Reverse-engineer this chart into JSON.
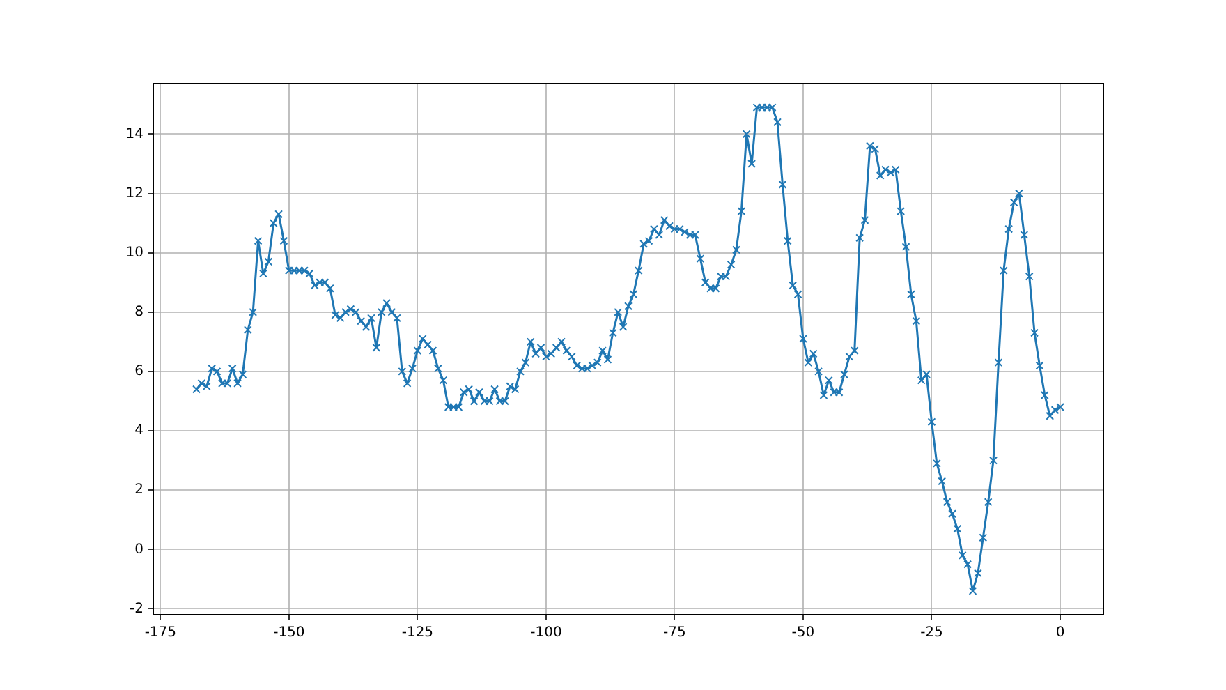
{
  "chart_data": {
    "type": "line",
    "marker": "cross",
    "line_style": "solid",
    "grid": true,
    "legend": false,
    "xlim": [
      -176.4,
      8.4
    ],
    "ylim": [
      -2.2,
      15.7
    ],
    "xticks": [
      -175,
      -150,
      -125,
      -100,
      -75,
      -50,
      -25,
      0
    ],
    "yticks": [
      -2,
      0,
      2,
      4,
      6,
      8,
      10,
      12,
      14
    ],
    "x": [
      -168,
      -167,
      -166,
      -165,
      -164,
      -163,
      -162,
      -161,
      -160,
      -159,
      -158,
      -157,
      -156,
      -155,
      -154,
      -153,
      -152,
      -151,
      -150,
      -149,
      -148,
      -147,
      -146,
      -145,
      -144,
      -143,
      -142,
      -141,
      -140,
      -139,
      -138,
      -137,
      -136,
      -135,
      -134,
      -133,
      -132,
      -131,
      -130,
      -129,
      -128,
      -127,
      -126,
      -125,
      -124,
      -123,
      -122,
      -121,
      -120,
      -119,
      -118,
      -117,
      -116,
      -115,
      -114,
      -113,
      -112,
      -111,
      -110,
      -109,
      -108,
      -107,
      -106,
      -105,
      -104,
      -103,
      -102,
      -101,
      -100,
      -99,
      -98,
      -97,
      -96,
      -95,
      -94,
      -93,
      -92,
      -91,
      -90,
      -89,
      -88,
      -87,
      -86,
      -85,
      -84,
      -83,
      -82,
      -81,
      -80,
      -79,
      -78,
      -77,
      -76,
      -75,
      -74,
      -73,
      -72,
      -71,
      -70,
      -69,
      -68,
      -67,
      -66,
      -65,
      -64,
      -63,
      -62,
      -61,
      -60,
      -59,
      -58,
      -57,
      -56,
      -55,
      -54,
      -53,
      -52,
      -51,
      -50,
      -49,
      -48,
      -47,
      -46,
      -45,
      -44,
      -43,
      -42,
      -41,
      -40,
      -39,
      -38,
      -37,
      -36,
      -35,
      -34,
      -33,
      -32,
      -31,
      -30,
      -29,
      -28,
      -27,
      -26,
      -25,
      -24,
      -23,
      -22,
      -21,
      -20,
      -19,
      -18,
      -17,
      -16,
      -15,
      -14,
      -13,
      -12,
      -11,
      -10,
      -9,
      -8,
      -7,
      -6,
      -5,
      -4,
      -3,
      -2,
      -1,
      0
    ],
    "series": [
      {
        "color": "#1f77b4",
        "values": [
          5.4,
          5.6,
          5.5,
          6.1,
          6.0,
          5.6,
          5.6,
          6.1,
          5.6,
          5.9,
          7.4,
          8.0,
          10.4,
          9.3,
          9.7,
          11.0,
          11.3,
          10.4,
          9.4,
          9.4,
          9.4,
          9.4,
          9.3,
          8.9,
          9.0,
          9.0,
          8.8,
          7.9,
          7.8,
          8.0,
          8.1,
          8.0,
          7.7,
          7.5,
          7.8,
          6.8,
          8.0,
          8.3,
          8.0,
          7.8,
          6.0,
          5.6,
          6.1,
          6.7,
          7.1,
          6.9,
          6.7,
          6.1,
          5.7,
          4.8,
          4.8,
          4.8,
          5.3,
          5.4,
          5.0,
          5.3,
          5.0,
          5.0,
          5.4,
          5.0,
          5.0,
          5.5,
          5.4,
          6.0,
          6.3,
          7.0,
          6.6,
          6.8,
          6.5,
          6.6,
          6.8,
          7.0,
          6.7,
          6.5,
          6.2,
          6.1,
          6.1,
          6.2,
          6.3,
          6.7,
          6.4,
          7.3,
          8.0,
          7.5,
          8.2,
          8.6,
          9.4,
          10.3,
          10.4,
          10.8,
          10.6,
          11.1,
          10.9,
          10.8,
          10.8,
          10.7,
          10.6,
          10.6,
          9.8,
          9.0,
          8.8,
          8.8,
          9.2,
          9.2,
          9.6,
          10.1,
          11.4,
          14.0,
          13.0,
          14.9,
          14.9,
          14.9,
          14.9,
          14.4,
          12.3,
          10.4,
          8.9,
          8.6,
          7.1,
          6.3,
          6.6,
          6.0,
          5.2,
          5.7,
          5.3,
          5.3,
          5.9,
          6.5,
          6.7,
          10.5,
          11.1,
          13.6,
          13.5,
          12.6,
          12.8,
          12.7,
          12.8,
          11.4,
          10.2,
          8.6,
          7.7,
          5.7,
          5.9,
          4.3,
          2.9,
          2.3,
          1.6,
          1.2,
          0.7,
          -0.2,
          -0.5,
          -1.4,
          -0.8,
          0.4,
          1.6,
          3.0,
          6.3,
          9.4,
          10.8,
          11.7,
          12.0,
          10.6,
          9.2,
          7.3,
          6.2,
          5.2,
          4.5,
          4.7,
          4.8
        ]
      }
    ]
  }
}
